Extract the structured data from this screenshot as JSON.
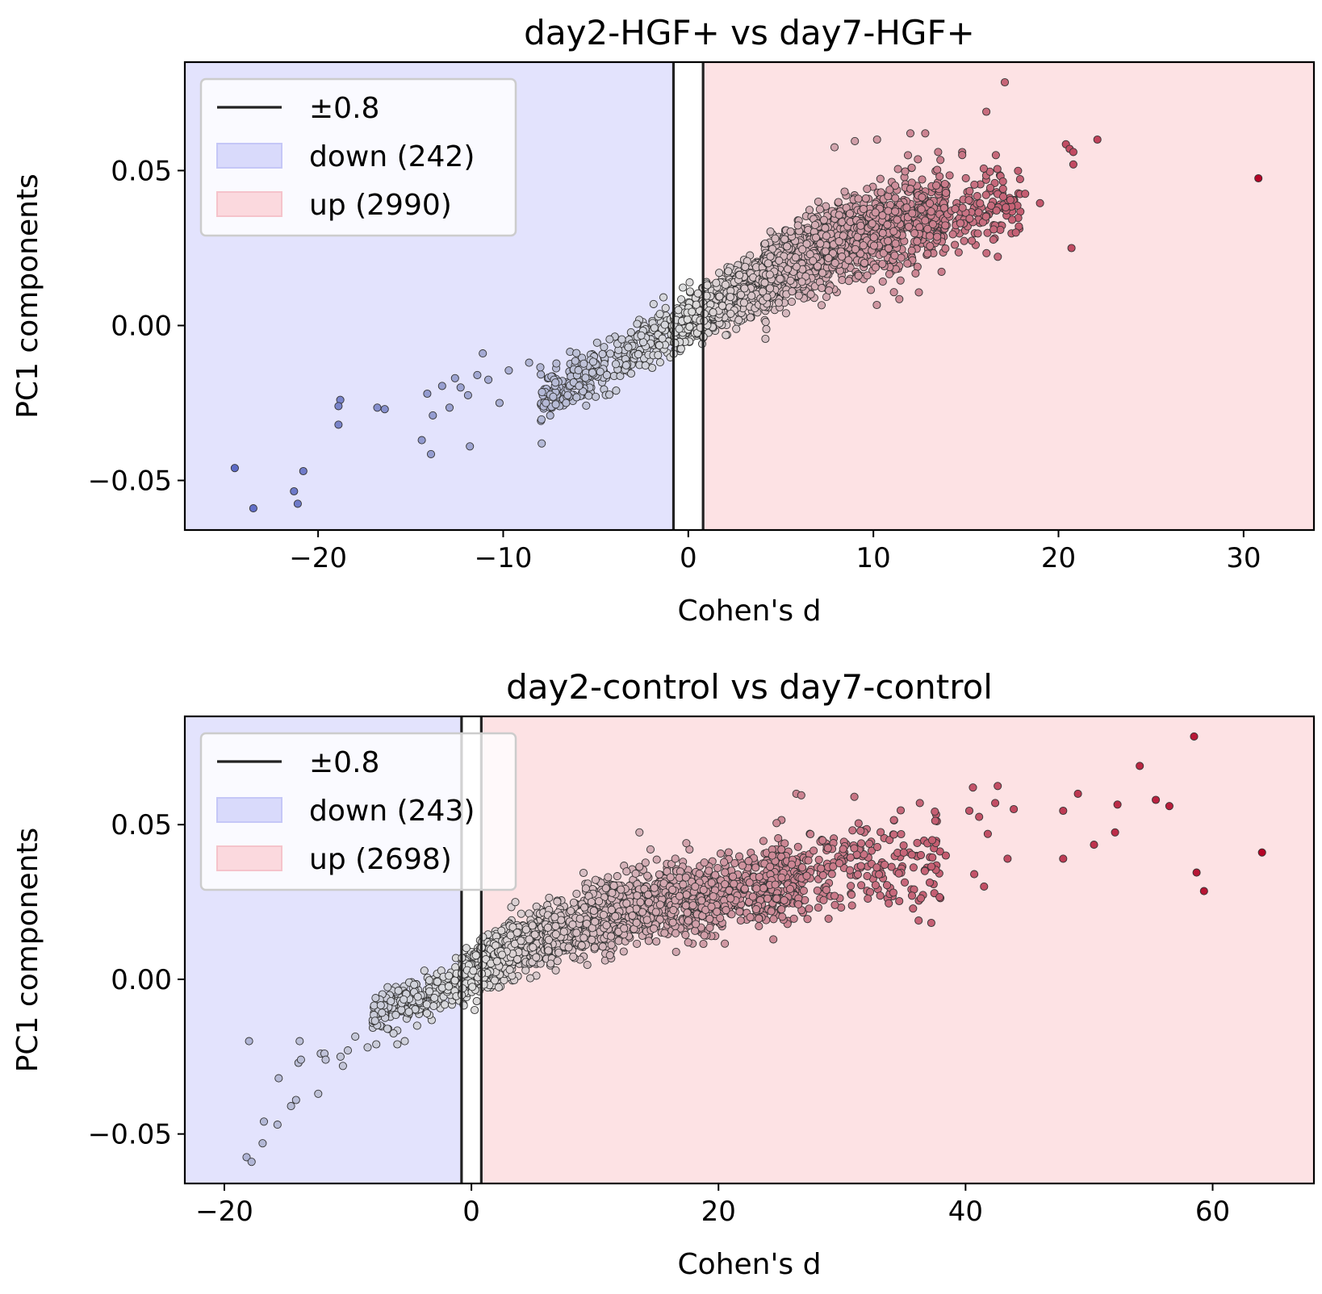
{
  "colors": {
    "down_region": "#e3e3fd",
    "up_region": "#fde2e4",
    "threshold_line": "#222222",
    "cmap_low": "#3b4cc0",
    "cmap_mid": "#dddddd",
    "cmap_high": "#b40426"
  },
  "chart_data": [
    {
      "type": "scatter",
      "title": "day2-HGF+ vs day7-HGF+",
      "xlabel": "Cohen's d",
      "ylabel": "PC1 components",
      "xlim": [
        -27.2,
        33.8
      ],
      "ylim": [
        -0.066,
        0.085
      ],
      "xticks": [
        -20,
        -10,
        0,
        10,
        20,
        30
      ],
      "xtick_labels": [
        "−20",
        "−10",
        "0",
        "10",
        "20",
        "30"
      ],
      "yticks": [
        -0.05,
        0.0,
        0.05
      ],
      "ytick_labels": [
        "−0.05",
        "0.00",
        "0.05"
      ],
      "threshold": 0.8,
      "color_range": [
        -30.8,
        30.8
      ],
      "legend": {
        "position": "upper left",
        "entries": [
          {
            "kind": "line",
            "label": "±0.8"
          },
          {
            "kind": "down",
            "label": "down (242)"
          },
          {
            "kind": "up",
            "label": "up (2990)"
          }
        ]
      },
      "cloud": [
        {
          "n": 300,
          "x": [
            -8.0,
            -0.8
          ],
          "slope": 0.0033,
          "intercept": 0.002,
          "spread": 0.004
        },
        {
          "n": 700,
          "x": [
            -0.8,
            4.0
          ],
          "slope": 0.0036,
          "intercept": 0.001,
          "spread": 0.004
        },
        {
          "n": 900,
          "x": [
            4.0,
            9.0
          ],
          "slope": 0.0028,
          "intercept": 0.004,
          "spread": 0.006
        },
        {
          "n": 550,
          "x": [
            9.0,
            14.0
          ],
          "slope": 0.0016,
          "intercept": 0.014,
          "spread": 0.007
        },
        {
          "n": 120,
          "x": [
            14.0,
            18.0
          ],
          "slope": 0.0008,
          "intercept": 0.025,
          "spread": 0.007
        }
      ],
      "points": [
        [
          -24.5,
          -0.046
        ],
        [
          -23.5,
          -0.059
        ],
        [
          -21.3,
          -0.0535
        ],
        [
          -21.1,
          -0.0575
        ],
        [
          -20.8,
          -0.047
        ],
        [
          -18.8,
          -0.024
        ],
        [
          -18.9,
          -0.026
        ],
        [
          -18.9,
          -0.032
        ],
        [
          -16.8,
          -0.0265
        ],
        [
          -16.4,
          -0.027
        ],
        [
          -14.4,
          -0.037
        ],
        [
          -13.9,
          -0.0415
        ],
        [
          -14.1,
          -0.022
        ],
        [
          -13.8,
          -0.029
        ],
        [
          -13.3,
          -0.0195
        ],
        [
          -12.9,
          -0.0265
        ],
        [
          -12.6,
          -0.017
        ],
        [
          -12.3,
          -0.02
        ],
        [
          -11.8,
          -0.039
        ],
        [
          -11.9,
          -0.0225
        ],
        [
          -11.4,
          -0.016
        ],
        [
          -11.1,
          -0.009
        ],
        [
          -10.8,
          -0.0175
        ],
        [
          -10.2,
          -0.025
        ],
        [
          -9.7,
          -0.0145
        ],
        [
          -8.6,
          -0.012
        ],
        [
          -7.9,
          -0.0215
        ],
        [
          -7.3,
          -0.023
        ],
        [
          -6.6,
          -0.025
        ],
        [
          -5.9,
          -0.0195
        ],
        [
          -5.0,
          -0.023
        ],
        [
          -4.4,
          -0.016
        ],
        [
          -3.9,
          -0.021
        ],
        [
          17.1,
          0.0785
        ],
        [
          16.1,
          0.069
        ],
        [
          12.0,
          0.062
        ],
        [
          12.8,
          0.062
        ],
        [
          10.2,
          0.06
        ],
        [
          9.0,
          0.0595
        ],
        [
          7.9,
          0.0575
        ],
        [
          13.5,
          0.056
        ],
        [
          14.8,
          0.055
        ],
        [
          20.4,
          0.0585
        ],
        [
          20.6,
          0.057
        ],
        [
          20.8,
          0.056
        ],
        [
          22.1,
          0.06
        ],
        [
          20.8,
          0.052
        ],
        [
          20.7,
          0.025
        ],
        [
          30.8,
          0.0475
        ],
        [
          19.0,
          0.0395
        ],
        [
          18.2,
          0.0425
        ],
        [
          17.4,
          0.0405
        ],
        [
          16.7,
          0.0505
        ],
        [
          17.0,
          0.0465
        ],
        [
          11.4,
          0.0085
        ],
        [
          15.2,
          0.0345
        ],
        [
          14.7,
          0.033
        ],
        [
          16.5,
          0.031
        ]
      ]
    },
    {
      "type": "scatter",
      "title": "day2-control vs day7-control",
      "xlabel": "Cohen's d",
      "ylabel": "PC1 components",
      "xlim": [
        -23.2,
        68.2
      ],
      "ylim": [
        -0.066,
        0.085
      ],
      "xticks": [
        -20,
        0,
        20,
        40,
        60
      ],
      "xtick_labels": [
        "−20",
        "0",
        "20",
        "40",
        "60"
      ],
      "yticks": [
        -0.05,
        0.0,
        0.05
      ],
      "ytick_labels": [
        "−0.05",
        "0.00",
        "0.05"
      ],
      "threshold": 0.8,
      "color_range": [
        -64,
        64
      ],
      "legend": {
        "position": "upper left",
        "entries": [
          {
            "kind": "line",
            "label": "±0.8"
          },
          {
            "kind": "down",
            "label": "down (243)"
          },
          {
            "kind": "up",
            "label": "up (2698)"
          }
        ]
      },
      "cloud": [
        {
          "n": 240,
          "x": [
            -8.0,
            -0.8
          ],
          "slope": 0.0016,
          "intercept": 0.001,
          "spread": 0.003
        },
        {
          "n": 900,
          "x": [
            -0.8,
            6.0
          ],
          "slope": 0.0022,
          "intercept": 0.002,
          "spread": 0.004
        },
        {
          "n": 900,
          "x": [
            6.0,
            16.0
          ],
          "slope": 0.0012,
          "intercept": 0.007,
          "spread": 0.005
        },
        {
          "n": 600,
          "x": [
            16.0,
            27.0
          ],
          "slope": 0.0008,
          "intercept": 0.011,
          "spread": 0.006
        },
        {
          "n": 180,
          "x": [
            27.0,
            38.0
          ],
          "slope": 0.0005,
          "intercept": 0.02,
          "spread": 0.007
        }
      ],
      "points": [
        [
          -18.0,
          -0.02
        ],
        [
          -18.2,
          -0.0575
        ],
        [
          -17.8,
          -0.059
        ],
        [
          -16.9,
          -0.053
        ],
        [
          -16.8,
          -0.046
        ],
        [
          -15.7,
          -0.047
        ],
        [
          -15.6,
          -0.032
        ],
        [
          -14.6,
          -0.041
        ],
        [
          -14.2,
          -0.039
        ],
        [
          -14.0,
          -0.027
        ],
        [
          -13.9,
          -0.02
        ],
        [
          -13.8,
          -0.026
        ],
        [
          -12.4,
          -0.037
        ],
        [
          -12.2,
          -0.024
        ],
        [
          -11.9,
          -0.024
        ],
        [
          -11.8,
          -0.026
        ],
        [
          -10.6,
          -0.025
        ],
        [
          -10.4,
          -0.028
        ],
        [
          -10.0,
          -0.023
        ],
        [
          -9.4,
          -0.0185
        ],
        [
          -8.4,
          -0.022
        ],
        [
          -7.7,
          -0.021
        ],
        [
          -6.8,
          -0.016
        ],
        [
          -6.0,
          -0.021
        ],
        [
          -5.4,
          -0.02
        ],
        [
          -4.4,
          -0.015
        ],
        [
          -3.6,
          -0.011
        ],
        [
          -3.0,
          -0.006
        ],
        [
          13.6,
          0.0475
        ],
        [
          12.1,
          0.029
        ],
        [
          14.5,
          0.042
        ],
        [
          16.5,
          0.039
        ],
        [
          17.4,
          0.044
        ],
        [
          25.1,
          0.0515
        ],
        [
          24.7,
          0.0505
        ],
        [
          26.3,
          0.06
        ],
        [
          26.7,
          0.0595
        ],
        [
          31.0,
          0.059
        ],
        [
          34.2,
          0.0515
        ],
        [
          36.3,
          0.057
        ],
        [
          36.2,
          0.019
        ],
        [
          40.3,
          0.0545
        ],
        [
          41.1,
          0.0525
        ],
        [
          40.6,
          0.062
        ],
        [
          42.6,
          0.0625
        ],
        [
          42.4,
          0.057
        ],
        [
          43.9,
          0.055
        ],
        [
          41.8,
          0.047
        ],
        [
          40.7,
          0.034
        ],
        [
          43.4,
          0.039
        ],
        [
          41.5,
          0.03
        ],
        [
          38.4,
          0.04
        ],
        [
          47.9,
          0.039
        ],
        [
          47.9,
          0.0545
        ],
        [
          49.1,
          0.06
        ],
        [
          50.4,
          0.0435
        ],
        [
          52.1,
          0.0475
        ],
        [
          52.3,
          0.0565
        ],
        [
          54.1,
          0.069
        ],
        [
          55.4,
          0.058
        ],
        [
          56.5,
          0.056
        ],
        [
          58.5,
          0.0785
        ],
        [
          58.7,
          0.0345
        ],
        [
          59.3,
          0.0285
        ],
        [
          64.0,
          0.041
        ],
        [
          36.7,
          0.035
        ],
        [
          37.3,
          0.045
        ],
        [
          31.5,
          0.048
        ]
      ]
    }
  ]
}
